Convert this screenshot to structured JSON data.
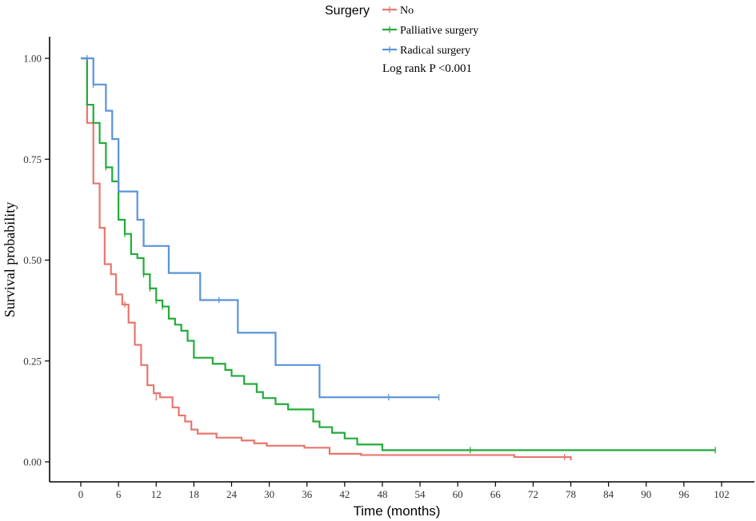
{
  "chart_data": {
    "type": "line",
    "subtype": "kaplan-meier-step",
    "title": "",
    "xlabel": "Time (months)",
    "ylabel": "Survival probability",
    "xlim": [
      0,
      102
    ],
    "ylim": [
      0,
      1
    ],
    "x_ticks": [
      0,
      6,
      12,
      18,
      24,
      30,
      36,
      42,
      48,
      54,
      60,
      66,
      72,
      78,
      84,
      90,
      96,
      102
    ],
    "x_tick_labels": [
      "0",
      "6",
      "12",
      "18",
      "24",
      "30",
      "36",
      "42",
      "48",
      "54",
      "60",
      "66",
      "72",
      "78",
      "84",
      "90",
      "96",
      "102"
    ],
    "y_ticks": [
      0,
      0.25,
      0.5,
      0.75,
      1
    ],
    "y_tick_labels": [
      "0.00",
      "0.25",
      "0.50",
      "0.75",
      "1.00"
    ],
    "legend": {
      "title": "Surgery",
      "position": "top"
    },
    "annotation": "Log rank P <0.001",
    "series": [
      {
        "name": "No",
        "color": "#E8766D",
        "steps": [
          [
            0,
            1.0
          ],
          [
            1,
            0.84
          ],
          [
            2,
            0.69
          ],
          [
            3,
            0.58
          ],
          [
            3.8,
            0.49
          ],
          [
            4.8,
            0.465
          ],
          [
            5.6,
            0.415
          ],
          [
            6.6,
            0.39
          ],
          [
            7.6,
            0.345
          ],
          [
            8.6,
            0.29
          ],
          [
            9.6,
            0.24
          ],
          [
            10.6,
            0.19
          ],
          [
            11.6,
            0.17
          ],
          [
            12.6,
            0.16
          ],
          [
            14.6,
            0.135
          ],
          [
            15.6,
            0.115
          ],
          [
            16.6,
            0.1
          ],
          [
            17.6,
            0.08
          ],
          [
            18.6,
            0.07
          ],
          [
            21.6,
            0.06
          ],
          [
            25.6,
            0.053
          ],
          [
            27.6,
            0.046
          ],
          [
            29.6,
            0.04
          ],
          [
            35.6,
            0.035
          ],
          [
            39.6,
            0.02
          ],
          [
            44.6,
            0.017
          ],
          [
            69,
            0.012
          ],
          [
            78,
            0.004
          ]
        ],
        "end_x": 78,
        "censored": [
          [
            7,
            0.39
          ],
          [
            12,
            0.16
          ],
          [
            77,
            0.012
          ]
        ]
      },
      {
        "name": "Palliative surgery",
        "color": "#22AB3A",
        "steps": [
          [
            0,
            1.0
          ],
          [
            1,
            0.885
          ],
          [
            2,
            0.84
          ],
          [
            3,
            0.79
          ],
          [
            4,
            0.73
          ],
          [
            5,
            0.695
          ],
          [
            6,
            0.6
          ],
          [
            7,
            0.565
          ],
          [
            8,
            0.515
          ],
          [
            9,
            0.505
          ],
          [
            10,
            0.465
          ],
          [
            11,
            0.43
          ],
          [
            12,
            0.4
          ],
          [
            13,
            0.385
          ],
          [
            14,
            0.355
          ],
          [
            15,
            0.34
          ],
          [
            16,
            0.325
          ],
          [
            17,
            0.3
          ],
          [
            18,
            0.258
          ],
          [
            21,
            0.243
          ],
          [
            23,
            0.228
          ],
          [
            24,
            0.213
          ],
          [
            26,
            0.193
          ],
          [
            28,
            0.173
          ],
          [
            29,
            0.158
          ],
          [
            31,
            0.143
          ],
          [
            33,
            0.13
          ],
          [
            37,
            0.1
          ],
          [
            38,
            0.086
          ],
          [
            40,
            0.072
          ],
          [
            42,
            0.058
          ],
          [
            44,
            0.043
          ],
          [
            48,
            0.029
          ]
        ],
        "end_x": 101,
        "censored": [
          [
            4,
            0.73
          ],
          [
            7,
            0.565
          ],
          [
            10,
            0.465
          ],
          [
            11,
            0.43
          ],
          [
            12,
            0.4
          ],
          [
            13,
            0.385
          ],
          [
            62,
            0.029
          ],
          [
            101,
            0.029
          ]
        ]
      },
      {
        "name": "Radical surgery",
        "color": "#5A93D8",
        "steps": [
          [
            0,
            1.0
          ],
          [
            2,
            0.935
          ],
          [
            4,
            0.87
          ],
          [
            5,
            0.8
          ],
          [
            6,
            0.67
          ],
          [
            9,
            0.6
          ],
          [
            10,
            0.535
          ],
          [
            14,
            0.468
          ],
          [
            19,
            0.401
          ],
          [
            25,
            0.32
          ],
          [
            31,
            0.24
          ],
          [
            38,
            0.16
          ]
        ],
        "end_x": 57,
        "censored": [
          [
            1,
            1.0
          ],
          [
            2,
            0.935
          ],
          [
            22,
            0.401
          ],
          [
            49,
            0.16
          ],
          [
            57,
            0.16
          ]
        ]
      }
    ]
  }
}
